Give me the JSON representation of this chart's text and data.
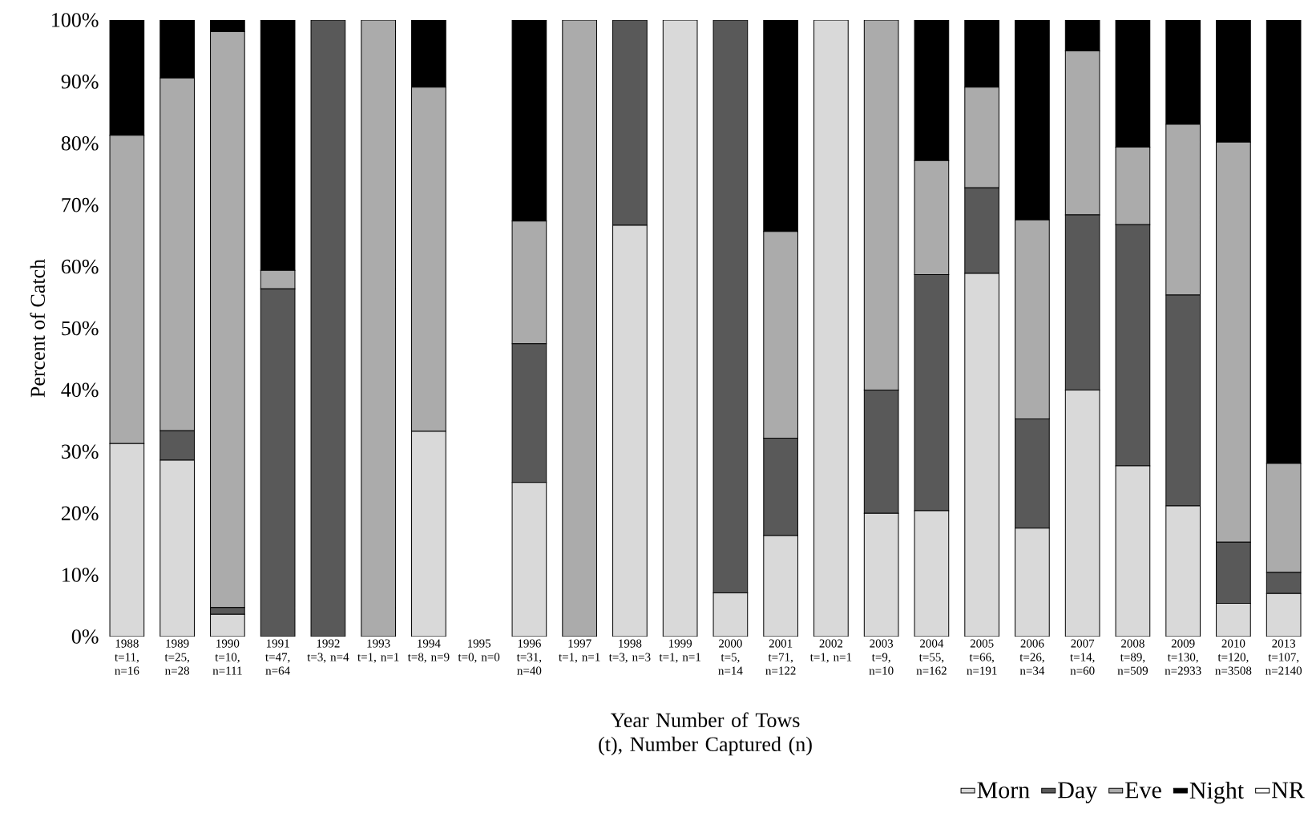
{
  "chart_data": {
    "type": "bar",
    "stacked": true,
    "categories": [
      "1988 t=11, n=16",
      "1989 t=25, n=28",
      "1990 t=10, n=111",
      "1991 t=47, n=64",
      "1992 t=3, n=4",
      "1993 t=1, n=1",
      "1994 t=8, n=9",
      "1995 t=0, n=0",
      "1996 t=31, n=40",
      "1997 t=1, n=1",
      "1998 t=3, n=3",
      "1999 t=1, n=1",
      "2000 t=5, n=14",
      "2001 t=71, n=122",
      "2002 t=1, n=1",
      "2003 t=9, n=10",
      "2004 t=55, n=162",
      "2005 t=66, n=191",
      "2006 t=26, n=34",
      "2007 t=14, n=60",
      "2008 t=89, n=509",
      "2009 t=130, n=2933",
      "2010 t=120, n=3508",
      "2013 t=107, n=2140"
    ],
    "xlabel": "Year Number of Tows (t), Number Captured (n)",
    "ylabel": "Percent of Catch",
    "ylim": [
      0,
      100
    ],
    "yticks": [
      {
        "value": 0,
        "label": "0%"
      },
      {
        "value": 10,
        "label": "10%"
      },
      {
        "value": 20,
        "label": "20%"
      },
      {
        "value": 30,
        "label": "30%"
      },
      {
        "value": 40,
        "label": "40%"
      },
      {
        "value": 50,
        "label": "50%"
      },
      {
        "value": 60,
        "label": "60%"
      },
      {
        "value": 70,
        "label": "70%"
      },
      {
        "value": 80,
        "label": "80%"
      },
      {
        "value": 90,
        "label": "90%"
      },
      {
        "value": 100,
        "label": "100%"
      }
    ],
    "legend": "bottom right",
    "series": [
      {
        "name": "Morn",
        "color": "#d9d9d9",
        "values": [
          31.3,
          28.6,
          3.6,
          0,
          0,
          0,
          33.3,
          0,
          25,
          0,
          66.7,
          100,
          7.1,
          16.4,
          100,
          20,
          20.4,
          58.9,
          17.6,
          40,
          27.7,
          21.2,
          5.4,
          7.0
        ]
      },
      {
        "name": "Day",
        "color": "#595959",
        "values": [
          0,
          4.8,
          1.1,
          56.4,
          100,
          0,
          0,
          0,
          22.5,
          0,
          33.3,
          0,
          92.9,
          15.8,
          0,
          20,
          38.3,
          13.9,
          17.7,
          28.4,
          39.1,
          34.2,
          9.9,
          3.4
        ]
      },
      {
        "name": "Eve",
        "color": "#ababab",
        "values": [
          50,
          57.2,
          93.4,
          3.0,
          0,
          100,
          55.8,
          0,
          19.9,
          100,
          0,
          0,
          0,
          33.5,
          0,
          60,
          18.5,
          16.3,
          32.3,
          26.6,
          12.6,
          27.7,
          64.9,
          17.7
        ]
      },
      {
        "name": "Night",
        "color": "#000000",
        "values": [
          18.7,
          9.4,
          1.9,
          40.6,
          0,
          0,
          10.9,
          0,
          32.6,
          0,
          0,
          0,
          0,
          34.3,
          0,
          0,
          22.8,
          10.9,
          32.4,
          5.0,
          20.6,
          16.9,
          19.8,
          71.9
        ]
      },
      {
        "name": "NR",
        "color": "#ffffff",
        "values": [
          0,
          0,
          0,
          0,
          0,
          0,
          0,
          0,
          0,
          0,
          0,
          0,
          0,
          0,
          0,
          0,
          0,
          0,
          0,
          0,
          0,
          0,
          0,
          0
        ]
      }
    ]
  }
}
